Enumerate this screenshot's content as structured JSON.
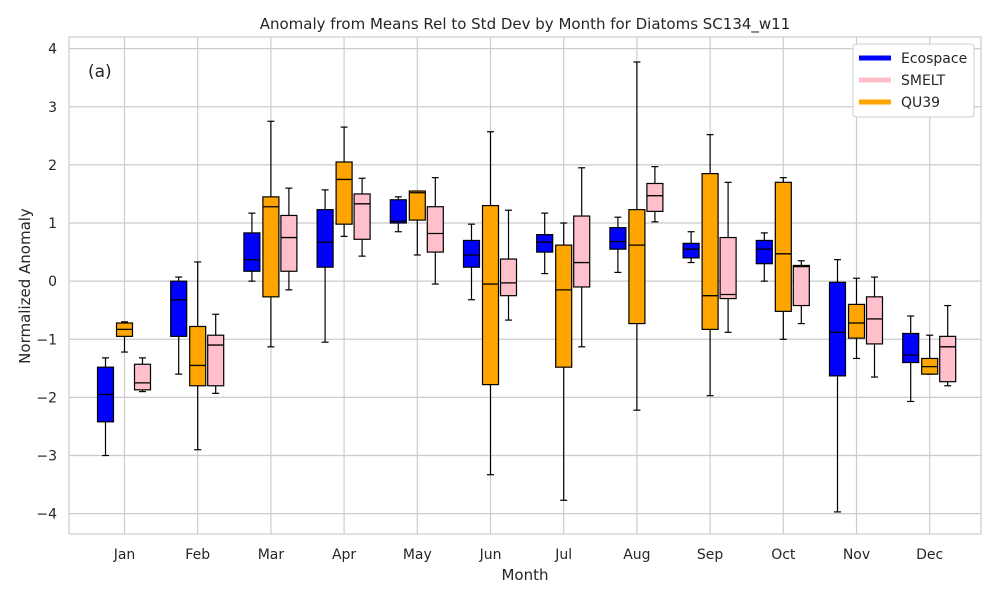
{
  "chart_data": {
    "type": "box",
    "title": "Anomaly from Means Rel to Std Dev by Month for Diatoms SC134_w11",
    "xlabel": "Month",
    "ylabel": "Normalized Anomaly",
    "panel_label": "(a)",
    "ylim": [
      -4.35,
      4.2
    ],
    "yticks": [
      -4,
      -3,
      -2,
      -1,
      0,
      1,
      2,
      3,
      4
    ],
    "ytick_labels": [
      "−4",
      "−3",
      "−2",
      "−1",
      "0",
      "1",
      "2",
      "3",
      "4"
    ],
    "grid": true,
    "legend_position": "top-right",
    "categories": [
      "Jan",
      "Feb",
      "Mar",
      "Apr",
      "May",
      "Jun",
      "Jul",
      "Aug",
      "Sep",
      "Oct",
      "Nov",
      "Dec"
    ],
    "series": [
      {
        "name": "Ecospace",
        "color": "#0000ff",
        "boxes": [
          {
            "whislo": -3.0,
            "q1": -2.42,
            "med": -1.95,
            "q3": -1.48,
            "whishi": -1.32
          },
          {
            "whislo": -1.6,
            "q1": -0.95,
            "med": -0.32,
            "q3": 0.0,
            "whishi": 0.07
          },
          {
            "whislo": 0.0,
            "q1": 0.17,
            "med": 0.37,
            "q3": 0.83,
            "whishi": 1.17
          },
          {
            "whislo": -1.05,
            "q1": 0.24,
            "med": 0.67,
            "q3": 1.23,
            "whishi": 1.57
          },
          {
            "whislo": 0.85,
            "q1": 1.0,
            "med": 1.03,
            "q3": 1.4,
            "whishi": 1.45
          },
          {
            "whislo": -0.32,
            "q1": 0.24,
            "med": 0.45,
            "q3": 0.7,
            "whishi": 0.98
          },
          {
            "whislo": 0.13,
            "q1": 0.5,
            "med": 0.67,
            "q3": 0.8,
            "whishi": 1.17
          },
          {
            "whislo": 0.15,
            "q1": 0.55,
            "med": 0.68,
            "q3": 0.92,
            "whishi": 1.1
          },
          {
            "whislo": 0.32,
            "q1": 0.4,
            "med": 0.55,
            "q3": 0.65,
            "whishi": 0.85
          },
          {
            "whislo": 0.0,
            "q1": 0.3,
            "med": 0.55,
            "q3": 0.7,
            "whishi": 0.83
          },
          {
            "whislo": -3.97,
            "q1": -1.63,
            "med": -0.88,
            "q3": -0.02,
            "whishi": 0.37
          },
          {
            "whislo": -2.07,
            "q1": -1.4,
            "med": -1.27,
            "q3": -0.9,
            "whishi": -0.6
          }
        ]
      },
      {
        "name": "QU39",
        "color": "#ffa500",
        "boxes": [
          {
            "whislo": -1.22,
            "q1": -0.95,
            "med": -0.83,
            "q3": -0.72,
            "whishi": -0.7
          },
          {
            "whislo": -2.9,
            "q1": -1.8,
            "med": -1.45,
            "q3": -0.78,
            "whishi": 0.33
          },
          {
            "whislo": -1.13,
            "q1": -0.27,
            "med": 1.28,
            "q3": 1.45,
            "whishi": 2.75
          },
          {
            "whislo": 0.77,
            "q1": 0.98,
            "med": 1.75,
            "q3": 2.05,
            "whishi": 2.65
          },
          {
            "whislo": 0.45,
            "q1": 1.05,
            "med": 1.52,
            "q3": 1.55,
            "whishi": 1.55
          },
          {
            "whislo": -3.33,
            "q1": -1.78,
            "med": -0.05,
            "q3": 1.3,
            "whishi": 2.57
          },
          {
            "whislo": -3.77,
            "q1": -1.48,
            "med": -0.15,
            "q3": 0.62,
            "whishi": 1.0
          },
          {
            "whislo": -2.22,
            "q1": -0.73,
            "med": 0.62,
            "q3": 1.23,
            "whishi": 3.77
          },
          {
            "whislo": -1.97,
            "q1": -0.83,
            "med": -0.25,
            "q3": 1.85,
            "whishi": 2.52
          },
          {
            "whislo": -1.0,
            "q1": -0.52,
            "med": 0.47,
            "q3": 1.7,
            "whishi": 1.78
          },
          {
            "whislo": -1.33,
            "q1": -0.98,
            "med": -0.72,
            "q3": -0.4,
            "whishi": 0.05
          },
          {
            "whislo": -1.6,
            "q1": -1.6,
            "med": -1.47,
            "q3": -1.33,
            "whishi": -0.93
          }
        ]
      },
      {
        "name": "SMELT",
        "color": "#ffc0cb",
        "boxes": [
          {
            "whislo": -1.9,
            "q1": -1.87,
            "med": -1.75,
            "q3": -1.43,
            "whishi": -1.32
          },
          {
            "whislo": -1.93,
            "q1": -1.8,
            "med": -1.1,
            "q3": -0.93,
            "whishi": -0.57
          },
          {
            "whislo": -0.15,
            "q1": 0.17,
            "med": 0.75,
            "q3": 1.13,
            "whishi": 1.6
          },
          {
            "whislo": 0.43,
            "q1": 0.72,
            "med": 1.33,
            "q3": 1.5,
            "whishi": 1.77
          },
          {
            "whislo": -0.05,
            "q1": 0.5,
            "med": 0.82,
            "q3": 1.28,
            "whishi": 1.78
          },
          {
            "whislo": -0.67,
            "q1": -0.25,
            "med": -0.03,
            "q3": 0.38,
            "whishi": 1.22
          },
          {
            "whislo": -1.13,
            "q1": -0.1,
            "med": 0.32,
            "q3": 1.12,
            "whishi": 1.95
          },
          {
            "whislo": 1.02,
            "q1": 1.2,
            "med": 1.47,
            "q3": 1.68,
            "whishi": 1.97
          },
          {
            "whislo": -0.88,
            "q1": -0.3,
            "med": -0.23,
            "q3": 0.75,
            "whishi": 1.7
          },
          {
            "whislo": -0.73,
            "q1": -0.42,
            "med": 0.25,
            "q3": 0.27,
            "whishi": 0.35
          },
          {
            "whislo": -1.65,
            "q1": -1.08,
            "med": -0.65,
            "q3": -0.27,
            "whishi": 0.07
          },
          {
            "whislo": -1.8,
            "q1": -1.73,
            "med": -1.13,
            "q3": -0.95,
            "whishi": -0.42
          }
        ]
      }
    ],
    "legend": [
      {
        "name": "Ecospace",
        "color": "#0000ff"
      },
      {
        "name": "SMELT",
        "color": "#ffc0cb"
      },
      {
        "name": "QU39",
        "color": "#ffa500"
      }
    ]
  }
}
